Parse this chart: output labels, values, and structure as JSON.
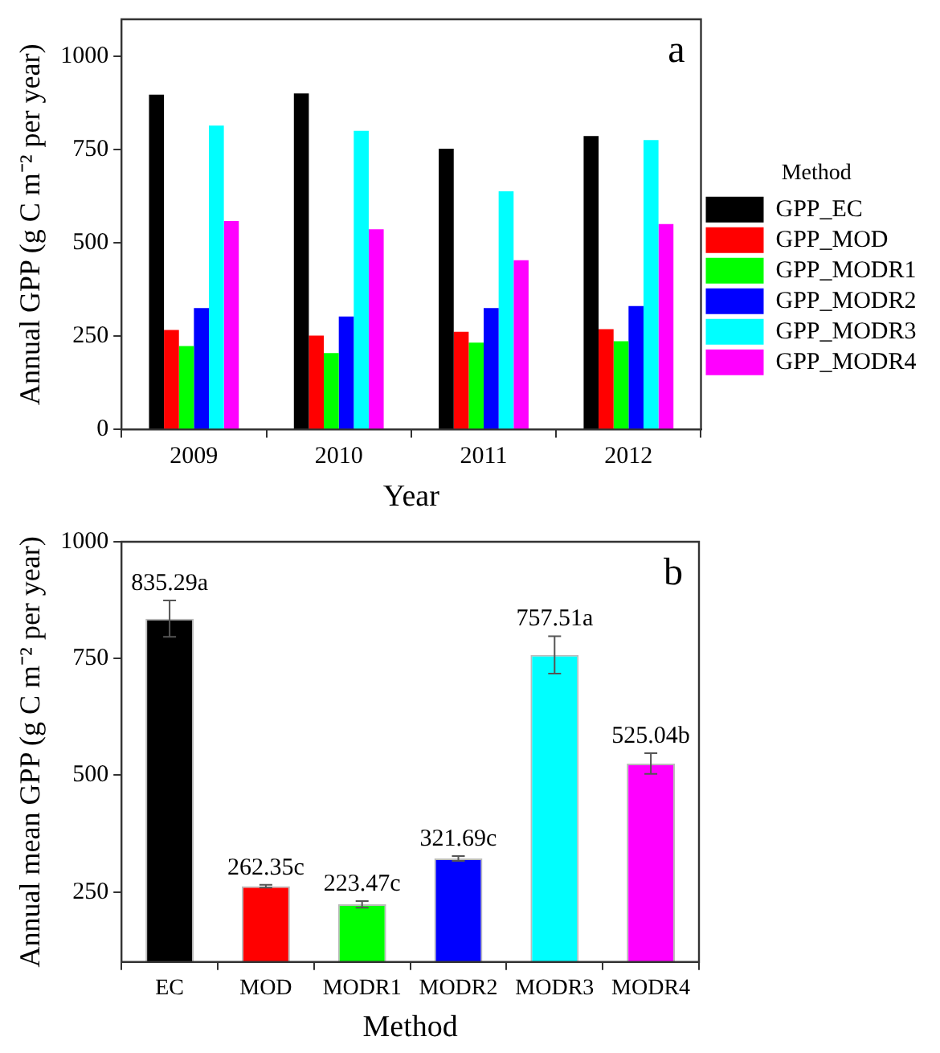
{
  "chart_data": [
    {
      "type": "bar",
      "categories": [
        "2009",
        "2010",
        "2011",
        "2012"
      ],
      "xlabel": "Year",
      "ylabel": "Annual GPP (g C m⁻² per year)",
      "ylim": [
        0,
        1100
      ],
      "yticks": [
        0,
        250,
        500,
        750,
        1000
      ],
      "grid": false,
      "legend": "right",
      "legend_title": "Method",
      "annotations": [
        "a"
      ],
      "series": [
        {
          "name": "GPP_EC",
          "color": "#000000",
          "values": [
            898,
            901,
            753,
            787
          ]
        },
        {
          "name": "GPP_MOD",
          "color": "#ff0000",
          "values": [
            267,
            252,
            262,
            269
          ]
        },
        {
          "name": "GPP_MODR1",
          "color": "#00ff00",
          "values": [
            224,
            205,
            233,
            237
          ]
        },
        {
          "name": "GPP_MODR2",
          "color": "#0000ff",
          "values": [
            326,
            303,
            326,
            331
          ]
        },
        {
          "name": "GPP_MODR3",
          "color": "#00ffff",
          "values": [
            815,
            801,
            639,
            776
          ]
        },
        {
          "name": "GPP_MODR4",
          "color": "#ff00ff",
          "values": [
            559,
            537,
            454,
            551
          ]
        }
      ]
    },
    {
      "type": "bar",
      "categories": [
        "EC",
        "MOD",
        "MODR1",
        "MODR2",
        "MODR3",
        "MODR4"
      ],
      "xlabel": "Method",
      "ylabel": "Annual mean GPP (g C m⁻² per year)",
      "ylim": [
        100,
        1000
      ],
      "yticks": [
        250,
        500,
        750,
        1000
      ],
      "grid": false,
      "legend": false,
      "annotations": [
        "b"
      ],
      "values": [
        835.29,
        262.35,
        223.47,
        321.69,
        757.51,
        525.04
      ],
      "colors": [
        "#000000",
        "#ff0000",
        "#00ff00",
        "#0000ff",
        "#00ffff",
        "#ff00ff"
      ],
      "errors": [
        39,
        3,
        7,
        5,
        40,
        22
      ],
      "value_labels": [
        "835.29a",
        "262.35c",
        "223.47c",
        "321.69c",
        "757.51a",
        "525.04b"
      ]
    }
  ]
}
